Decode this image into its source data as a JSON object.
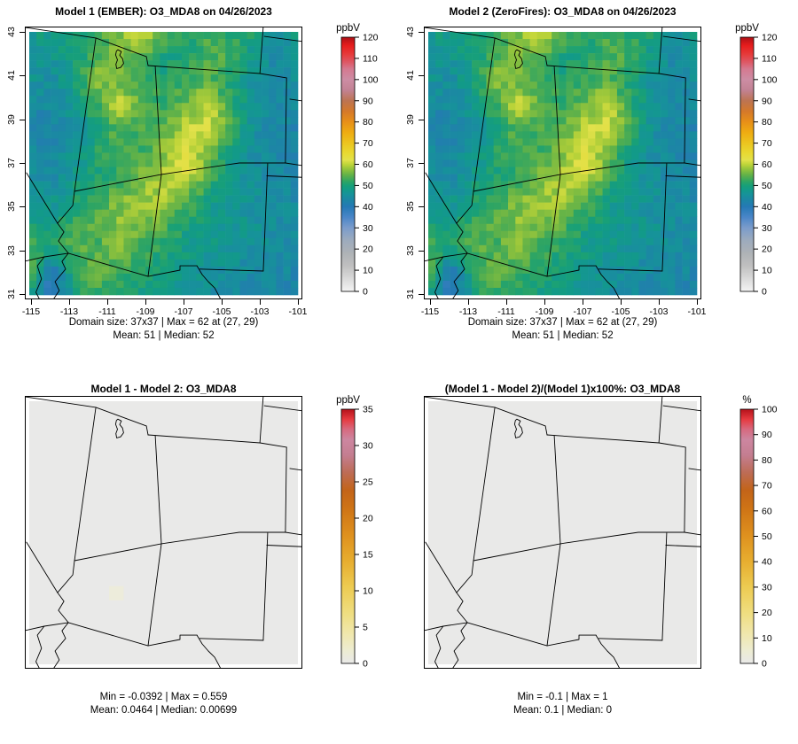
{
  "figure": {
    "background": "#ffffff",
    "pollutant": "O3_MDA8",
    "date": "04/26/2023"
  },
  "panels": [
    {
      "key": "model1",
      "title": "Model 1 (EMBER): O3_MDA8 on 04/26/2023",
      "stats1": "Domain size: 37x37 | Max = 62 at (27, 29)",
      "stats2": "Mean: 51 |  Median: 52",
      "colorbar_label": "ppbV",
      "cb_min": 0,
      "cb_max": 120,
      "cb_step": 10,
      "cb_map": "o3",
      "show_axes": true,
      "map": "field"
    },
    {
      "key": "model2",
      "title": "Model 2 (ZeroFires): O3_MDA8 on 04/26/2023",
      "stats1": "Domain size: 37x37 | Max = 62 at (27, 29)",
      "stats2": "Mean: 51 |  Median: 52",
      "colorbar_label": "ppbV",
      "cb_min": 0,
      "cb_max": 120,
      "cb_step": 10,
      "cb_map": "o3",
      "show_axes": true,
      "map": "field"
    },
    {
      "key": "diff",
      "title": "Model 1 - Model 2: O3_MDA8",
      "stats1": "Min = -0.0392 | Max = 0.559",
      "stats2": "Mean: 0.0464 |  Median: 0.00699",
      "colorbar_label": "ppbV",
      "cb_min": 0,
      "cb_max": 35,
      "cb_step": 5,
      "cb_map": "diff",
      "show_axes": false,
      "map": "flat"
    },
    {
      "key": "pctdiff",
      "title": "(Model 1 - Model 2)/(Model 1)x100%: O3_MDA8",
      "stats1": "Min = -0.1 | Max = 1",
      "stats2": "Mean: 0.1 |  Median: 0",
      "colorbar_label": "%",
      "cb_min": 0,
      "cb_max": 100,
      "cb_step": 10,
      "cb_map": "diff",
      "show_axes": false,
      "map": "flat"
    }
  ],
  "axes": {
    "x_ticks": [
      -115,
      -113,
      -111,
      -109,
      -107,
      -105,
      -103,
      -101
    ],
    "y_ticks": [
      43,
      41,
      39,
      37,
      35,
      33,
      31
    ]
  },
  "colors": {
    "flat_fill": "#e9e9e8",
    "border": "#000000",
    "anomaly_cell": "#edecdb",
    "o3_colormap": [
      [
        0,
        "#f4f4f4"
      ],
      [
        6,
        "#dadada"
      ],
      [
        12,
        "#c0c0c0"
      ],
      [
        18,
        "#aeb2b6"
      ],
      [
        24,
        "#9dabbd"
      ],
      [
        30,
        "#7b9ccb"
      ],
      [
        35,
        "#4a86c8"
      ],
      [
        40,
        "#2579b5"
      ],
      [
        43,
        "#1d85a6"
      ],
      [
        46,
        "#169399"
      ],
      [
        48,
        "#129a89"
      ],
      [
        50,
        "#18a077"
      ],
      [
        52,
        "#2fa563"
      ],
      [
        55,
        "#62b248"
      ],
      [
        58,
        "#97c53b"
      ],
      [
        60,
        "#c0d539"
      ],
      [
        62,
        "#e2e14b"
      ],
      [
        65,
        "#e8da33"
      ],
      [
        70,
        "#ecc51f"
      ],
      [
        75,
        "#eeac12"
      ],
      [
        80,
        "#e78f18"
      ],
      [
        85,
        "#d5792a"
      ],
      [
        90,
        "#bd7452"
      ],
      [
        95,
        "#c28294"
      ],
      [
        100,
        "#cd8da4"
      ],
      [
        105,
        "#d57990"
      ],
      [
        108,
        "#dd5a68"
      ],
      [
        112,
        "#e63a3a"
      ],
      [
        116,
        "#e71d1d"
      ],
      [
        120,
        "#ad1016"
      ]
    ],
    "diff_colormap": [
      [
        0,
        "#e9e9e9"
      ],
      [
        0.05,
        "#edecd2"
      ],
      [
        0.12,
        "#f0e7ab"
      ],
      [
        0.2,
        "#efdd7f"
      ],
      [
        0.3,
        "#edcb52"
      ],
      [
        0.4,
        "#e7ae30"
      ],
      [
        0.5,
        "#df921f"
      ],
      [
        0.6,
        "#d07616"
      ],
      [
        0.68,
        "#c36418"
      ],
      [
        0.75,
        "#bd6c55"
      ],
      [
        0.82,
        "#c47e91"
      ],
      [
        0.88,
        "#cd86a0"
      ],
      [
        0.92,
        "#d76a80"
      ],
      [
        0.96,
        "#e63a40"
      ],
      [
        1,
        "#b5121a"
      ]
    ]
  },
  "chart_data": [
    {
      "panel": "model1",
      "type": "heatmap",
      "title": "Model 1 (EMBER): O3_MDA8 on 04/26/2023",
      "units": "ppbV",
      "grid_size": "37x37",
      "lon_range": [
        -115.3,
        -100.8
      ],
      "lat_range": [
        30.75,
        43.25
      ],
      "x_ticks": [
        -115,
        -113,
        -111,
        -109,
        -107,
        -105,
        -103,
        -101
      ],
      "y_ticks": [
        31,
        33,
        35,
        37,
        39,
        41,
        43
      ],
      "colorbar": {
        "label": "ppbV",
        "range": [
          0,
          120
        ],
        "tick_step": 10
      },
      "stats": {
        "max": 62,
        "max_at_cell": [
          27,
          29
        ],
        "mean": 51,
        "median": 52
      },
      "field_note": "approximate ppbV values read from raster, 13 lon-columns (-115.3 to -100.8) x 12 lat-rows (north to south)",
      "field_coarse": [
        [
          48,
          49,
          50,
          52,
          56,
          61,
          54,
          51,
          53,
          52,
          50,
          46,
          48
        ],
        [
          47,
          47,
          48,
          54,
          57,
          55,
          50,
          50,
          54,
          53,
          48,
          44,
          46
        ],
        [
          46,
          45,
          50,
          57,
          55,
          52,
          50,
          52,
          55,
          50,
          46,
          44,
          45
        ],
        [
          44,
          44,
          47,
          53,
          61,
          54,
          52,
          56,
          60,
          52,
          46,
          43,
          44
        ],
        [
          43,
          42,
          45,
          50,
          55,
          53,
          55,
          60,
          62,
          54,
          46,
          43,
          43
        ],
        [
          44,
          43,
          46,
          51,
          53,
          52,
          57,
          62,
          57,
          49,
          45,
          43,
          43
        ],
        [
          45,
          44,
          48,
          50,
          52,
          56,
          60,
          61,
          54,
          47,
          45,
          44,
          44
        ],
        [
          47,
          46,
          50,
          53,
          56,
          58,
          59,
          55,
          49,
          47,
          46,
          45,
          44
        ],
        [
          49,
          48,
          53,
          55,
          57,
          57,
          54,
          50,
          48,
          47,
          46,
          45,
          44
        ],
        [
          53,
          50,
          55,
          53,
          57,
          53,
          51,
          49,
          47,
          47,
          45,
          45,
          44
        ],
        [
          56,
          40,
          51,
          56,
          53,
          52,
          49,
          47,
          46,
          45,
          44,
          44,
          43
        ],
        [
          50,
          36,
          49,
          52,
          51,
          49,
          47,
          46,
          45,
          44,
          44,
          43,
          42
        ]
      ]
    },
    {
      "panel": "model2",
      "type": "heatmap",
      "title": "Model 2 (ZeroFires): O3_MDA8 on 04/26/2023",
      "units": "ppbV",
      "grid_size": "37x37",
      "colorbar": {
        "label": "ppbV",
        "range": [
          0,
          120
        ],
        "tick_step": 10
      },
      "stats": {
        "max": 62,
        "max_at_cell": [
          27,
          29
        ],
        "mean": 51,
        "median": 52
      },
      "field_note": "visually identical to model1 field (difference max 0.559 ppbV)"
    },
    {
      "panel": "diff",
      "type": "heatmap",
      "title": "Model 1 - Model 2: O3_MDA8",
      "units": "ppbV",
      "colorbar": {
        "label": "ppbV",
        "range": [
          0,
          35
        ],
        "tick_step": 5
      },
      "stats": {
        "min": -0.0392,
        "max": 0.559,
        "mean": 0.0464,
        "median": 0.00699
      },
      "field_note": "uniform near-zero field (light gray) with one faintly visible pale cell",
      "visible_cell": {
        "approx_lon": -110.7,
        "approx_lat": 34.2
      }
    },
    {
      "panel": "pctdiff",
      "type": "heatmap",
      "title": "(Model 1 - Model 2)/(Model 1)x100%: O3_MDA8",
      "units": "%",
      "colorbar": {
        "label": "%",
        "range": [
          0,
          100
        ],
        "tick_step": 10
      },
      "stats": {
        "min": -0.1,
        "max": 1,
        "mean": 0.1,
        "median": 0
      },
      "field_note": "uniform near-zero field (light gray)"
    }
  ]
}
